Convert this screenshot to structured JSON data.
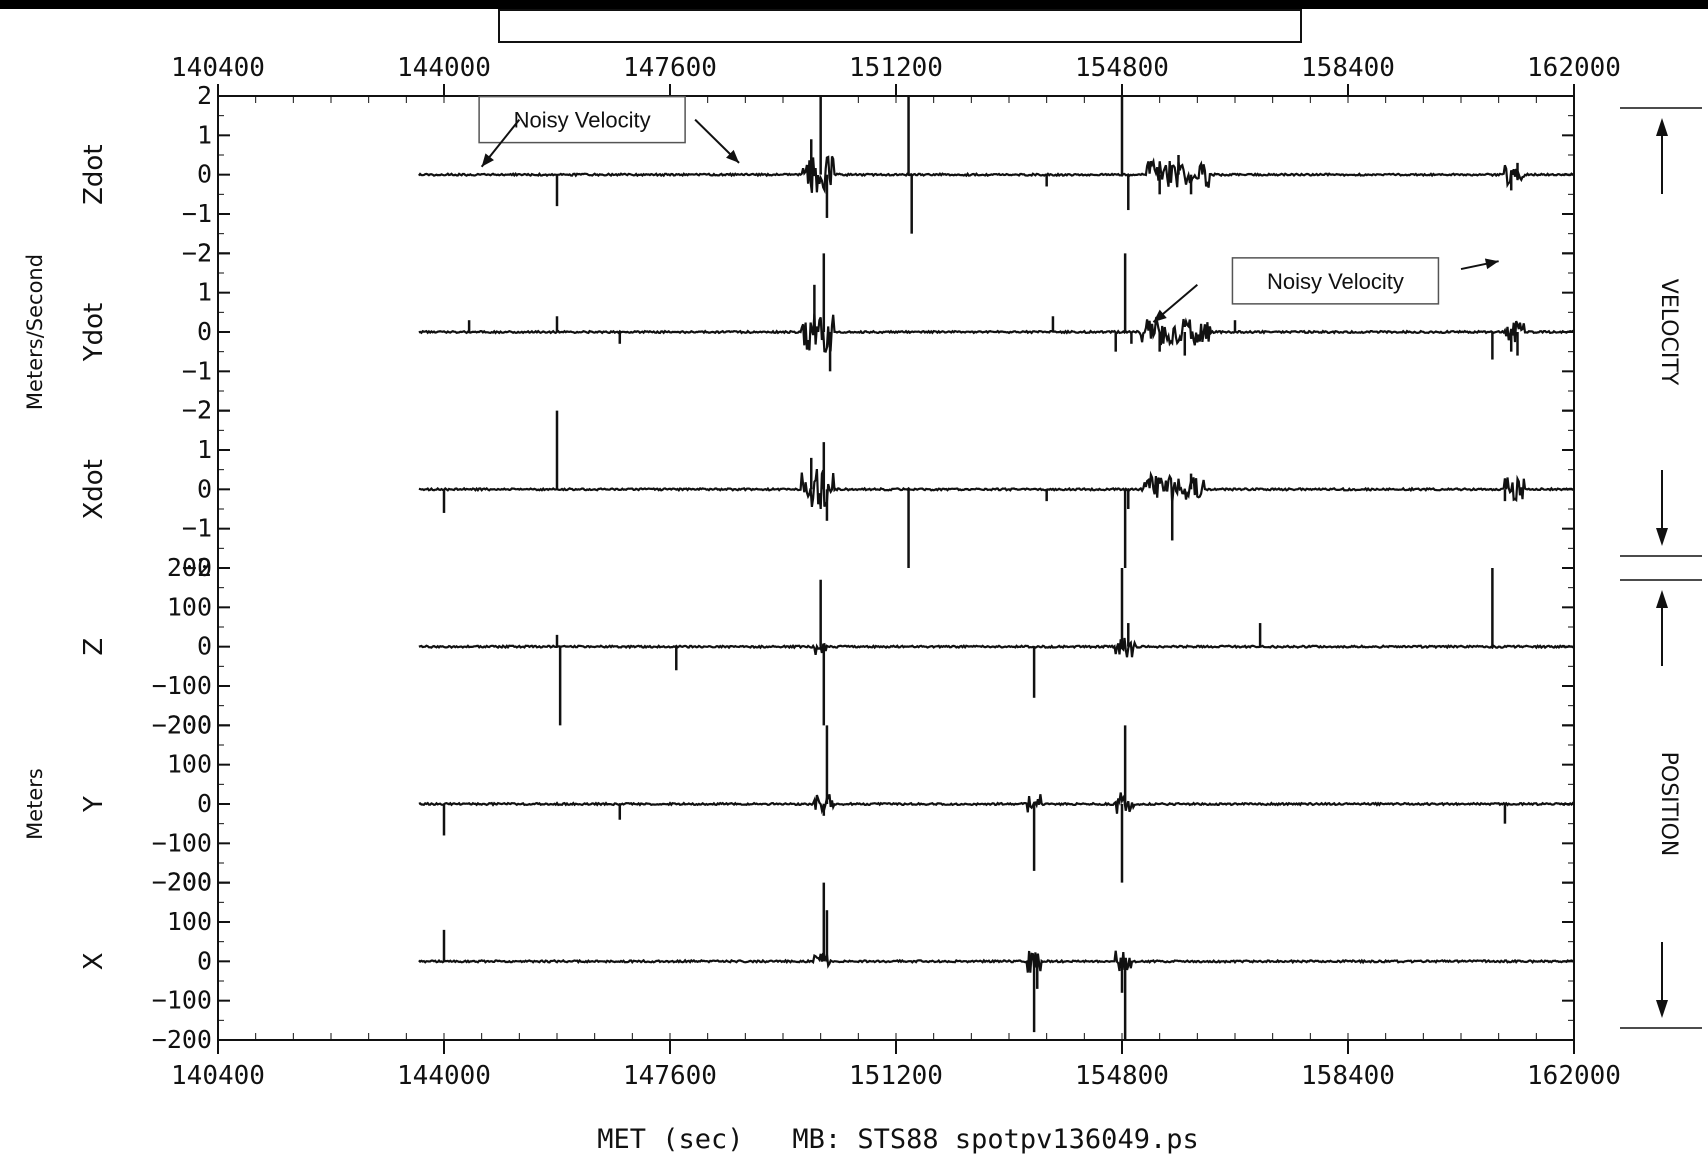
{
  "chart_data": {
    "type": "line",
    "xlabel": "MET (sec)   MB: STS88 spotpv136049.ps",
    "x_ticks": [
      "140400",
      "144000",
      "147600",
      "151200",
      "154800",
      "158400",
      "162000"
    ],
    "x_tick_values": [
      140400,
      144000,
      147600,
      151200,
      154800,
      158400,
      162000
    ],
    "xlim": [
      140400,
      162000
    ],
    "data_x_range": [
      143600,
      162000
    ],
    "units": [
      {
        "label": "Meters/Second",
        "panels": [
          0,
          1,
          2
        ]
      },
      {
        "label": "Meters",
        "panels": [
          3,
          4,
          5
        ]
      }
    ],
    "sections": [
      {
        "label": "VELOCITY",
        "panels": [
          0,
          1,
          2
        ]
      },
      {
        "label": "POSITION",
        "panels": [
          3,
          4,
          5
        ]
      }
    ],
    "panels": [
      {
        "name": "Zdot",
        "ylim": [
          -2,
          2
        ],
        "y_ticks": [
          "2",
          "1",
          "0",
          "−1",
          "−2"
        ],
        "y_tick_values": [
          2,
          1,
          0,
          -1,
          -2
        ],
        "spikes": [
          [
            145800,
            -0.8
          ],
          [
            149850,
            0.9
          ],
          [
            150000,
            2
          ],
          [
            150100,
            -1.1
          ],
          [
            151400,
            2
          ],
          [
            151450,
            -1.5
          ],
          [
            153600,
            -0.3
          ],
          [
            154800,
            2
          ],
          [
            154900,
            -0.9
          ],
          [
            155400,
            -0.5
          ],
          [
            155700,
            0.5
          ],
          [
            155900,
            -0.5
          ],
          [
            161000,
            -0.4
          ],
          [
            161100,
            0.3
          ]
        ],
        "bursts": [
          [
            149700,
            150200,
            0.5
          ],
          [
            155200,
            156200,
            0.35
          ],
          [
            160900,
            161200,
            0.25
          ]
        ]
      },
      {
        "name": "Ydot",
        "ylim": [
          -2,
          2
        ],
        "y_ticks": [
          "2",
          "1",
          "0",
          "−1",
          "−2"
        ],
        "y_tick_values": [
          2,
          1,
          0,
          -1,
          -2
        ],
        "spikes": [
          [
            144400,
            0.3
          ],
          [
            145800,
            0.4
          ],
          [
            146800,
            -0.3
          ],
          [
            149900,
            1.2
          ],
          [
            150050,
            2
          ],
          [
            150150,
            -1
          ],
          [
            153700,
            0.4
          ],
          [
            154700,
            -0.5
          ],
          [
            154850,
            2
          ],
          [
            154950,
            -0.3
          ],
          [
            155400,
            -0.5
          ],
          [
            155800,
            -0.6
          ],
          [
            156600,
            0.3
          ],
          [
            160700,
            -0.7
          ],
          [
            161000,
            -0.5
          ],
          [
            161100,
            -0.6
          ]
        ],
        "bursts": [
          [
            149700,
            150200,
            0.5
          ],
          [
            155100,
            156200,
            0.35
          ],
          [
            160900,
            161200,
            0.3
          ]
        ]
      },
      {
        "name": "Xdot",
        "ylim": [
          -2,
          2
        ],
        "y_ticks": [
          "2",
          "1",
          "0",
          "−1",
          "−2"
        ],
        "y_tick_values": [
          2,
          1,
          0,
          -1,
          -2
        ],
        "spikes": [
          [
            144000,
            -0.6
          ],
          [
            145800,
            2
          ],
          [
            149850,
            0.8
          ],
          [
            150050,
            1.2
          ],
          [
            150100,
            -0.8
          ],
          [
            151400,
            -2
          ],
          [
            153600,
            -0.3
          ],
          [
            154850,
            -2
          ],
          [
            154900,
            -0.5
          ],
          [
            155600,
            -1.3
          ],
          [
            155900,
            0.4
          ],
          [
            160900,
            -0.3
          ]
        ],
        "bursts": [
          [
            149700,
            150200,
            0.5
          ],
          [
            155100,
            156100,
            0.35
          ],
          [
            160900,
            161200,
            0.3
          ]
        ]
      },
      {
        "name": "Z",
        "ylim": [
          -200,
          200
        ],
        "y_ticks": [
          "200",
          "100",
          "0",
          "−100",
          "−200"
        ],
        "y_tick_values": [
          200,
          100,
          0,
          -100,
          -200
        ],
        "spikes": [
          [
            145800,
            30
          ],
          [
            145850,
            -200
          ],
          [
            147700,
            -60
          ],
          [
            150000,
            170
          ],
          [
            150050,
            -200
          ],
          [
            153400,
            -130
          ],
          [
            154800,
            200
          ],
          [
            154900,
            60
          ],
          [
            157000,
            60
          ],
          [
            160700,
            200
          ]
        ],
        "bursts": [
          [
            149900,
            150100,
            20
          ],
          [
            154700,
            155000,
            30
          ]
        ]
      },
      {
        "name": "Y",
        "ylim": [
          -200,
          200
        ],
        "y_ticks": [
          "200",
          "100",
          "0",
          "−100",
          "−200"
        ],
        "y_tick_values": [
          200,
          100,
          0,
          -100,
          -200
        ],
        "spikes": [
          [
            144000,
            -80
          ],
          [
            146800,
            -40
          ],
          [
            150100,
            200
          ],
          [
            150050,
            -30
          ],
          [
            153400,
            -170
          ],
          [
            154800,
            -200
          ],
          [
            154850,
            200
          ],
          [
            160900,
            -50
          ]
        ],
        "bursts": [
          [
            149900,
            150200,
            25
          ],
          [
            153300,
            153500,
            25
          ],
          [
            154700,
            155000,
            30
          ]
        ]
      },
      {
        "name": "X",
        "ylim": [
          -200,
          200
        ],
        "y_ticks": [
          "200",
          "100",
          "0",
          "−100",
          "−200"
        ],
        "y_tick_values": [
          200,
          100,
          0,
          -100,
          -200
        ],
        "spikes": [
          [
            144000,
            80
          ],
          [
            150050,
            200
          ],
          [
            150100,
            130
          ],
          [
            153400,
            -180
          ],
          [
            153450,
            -70
          ],
          [
            154850,
            -200
          ],
          [
            154800,
            -80
          ]
        ],
        "bursts": [
          [
            149900,
            150150,
            20
          ],
          [
            153300,
            153500,
            30
          ],
          [
            154700,
            154950,
            30
          ]
        ]
      }
    ],
    "annotations": [
      {
        "text": "Noisy Velocity",
        "box_x": 146200,
        "box_y": 1.4,
        "panel": 0,
        "arrows": [
          {
            "from": [
              145200,
              1.4
            ],
            "to": [
              144600,
              0.2
            ],
            "panel": 0
          },
          {
            "from": [
              148000,
              1.4
            ],
            "to": [
              148700,
              0.3
            ],
            "panel": 0
          }
        ]
      },
      {
        "text": "Noisy Velocity",
        "box_x": 158200,
        "box_y": 1.3,
        "panel": 1,
        "arrows": [
          {
            "from": [
              156000,
              1.2
            ],
            "to": [
              155300,
              0.25
            ],
            "panel": 1
          },
          {
            "from": [
              160200,
              1.6
            ],
            "to": [
              160800,
              1.8
            ],
            "panel": 1
          }
        ]
      }
    ],
    "header_box": true,
    "grid": false
  }
}
